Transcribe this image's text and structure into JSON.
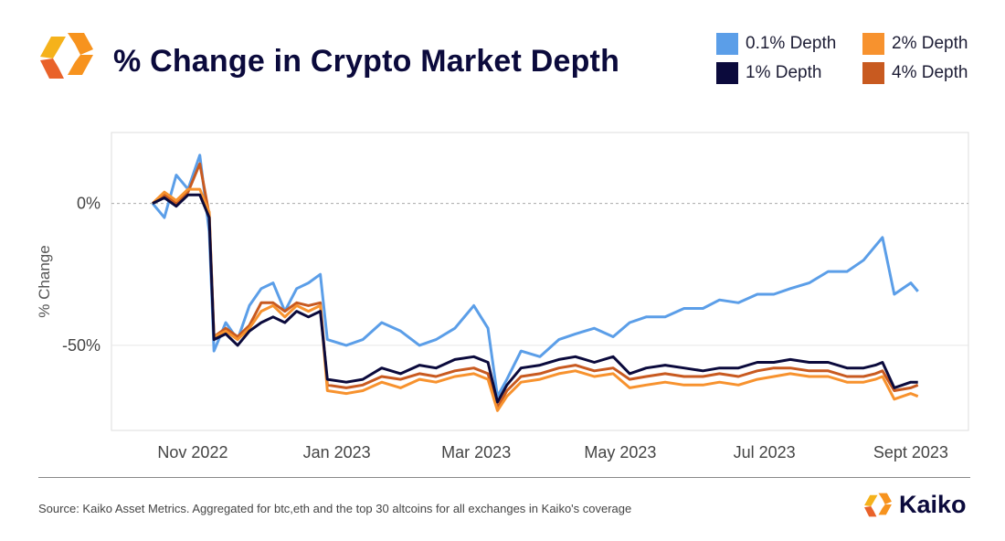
{
  "title": "% Change in Crypto Market Depth",
  "source": "Source: Kaiko Asset Metrics. Aggregated for btc,eth and the top 30 altcoins for all exchanges in Kaiko's coverage",
  "brand": "Kaiko",
  "colors": {
    "title": "#0b0a3c",
    "logo_orange": "#f7931e",
    "logo_gold": "#f5b21b",
    "logo_red": "#e9622a"
  },
  "chart_data": {
    "type": "line",
    "title": "% Change in Crypto Market Depth",
    "xlabel": "",
    "ylabel": "% Change",
    "ylim": [
      -80,
      25
    ],
    "yticks": [
      {
        "value": 0,
        "label": "0%"
      },
      {
        "value": -50,
        "label": "-50%"
      }
    ],
    "xlim": [
      "2022-10-15",
      "2023-09-08"
    ],
    "xticks": [
      {
        "date": "2022-11-01",
        "label": "Nov 2022"
      },
      {
        "date": "2023-01-01",
        "label": "Jan 2023"
      },
      {
        "date": "2023-03-01",
        "label": "Mar 2023"
      },
      {
        "date": "2023-05-01",
        "label": "May 2023"
      },
      {
        "date": "2023-07-01",
        "label": "Jul 2023"
      },
      {
        "date": "2023-09-01",
        "label": "Sept 2023"
      }
    ],
    "grid": true,
    "legend_position": "top-right",
    "x": [
      "2022-10-15",
      "2022-10-20",
      "2022-10-25",
      "2022-10-30",
      "2022-11-04",
      "2022-11-08",
      "2022-11-10",
      "2022-11-15",
      "2022-11-20",
      "2022-11-25",
      "2022-11-30",
      "2022-12-05",
      "2022-12-10",
      "2022-12-15",
      "2022-12-20",
      "2022-12-25",
      "2022-12-28",
      "2023-01-05",
      "2023-01-12",
      "2023-01-20",
      "2023-01-28",
      "2023-02-05",
      "2023-02-12",
      "2023-02-20",
      "2023-02-28",
      "2023-03-06",
      "2023-03-10",
      "2023-03-14",
      "2023-03-20",
      "2023-03-28",
      "2023-04-05",
      "2023-04-12",
      "2023-04-20",
      "2023-04-28",
      "2023-05-05",
      "2023-05-12",
      "2023-05-20",
      "2023-05-28",
      "2023-06-05",
      "2023-06-12",
      "2023-06-20",
      "2023-06-28",
      "2023-07-05",
      "2023-07-12",
      "2023-07-20",
      "2023-07-28",
      "2023-08-05",
      "2023-08-12",
      "2023-08-17",
      "2023-08-20",
      "2023-08-25",
      "2023-09-01",
      "2023-09-04"
    ],
    "series": [
      {
        "name": "0.1% Depth",
        "color": "#5b9ee8",
        "values": [
          0,
          -5,
          10,
          5,
          17,
          -10,
          -52,
          -42,
          -48,
          -36,
          -30,
          -28,
          -38,
          -30,
          -28,
          -25,
          -48,
          -50,
          -48,
          -42,
          -45,
          -50,
          -48,
          -44,
          -36,
          -44,
          -68,
          -62,
          -52,
          -54,
          -48,
          -46,
          -44,
          -47,
          -42,
          -40,
          -40,
          -37,
          -37,
          -34,
          -35,
          -32,
          -32,
          -30,
          -28,
          -24,
          -24,
          -20,
          -15,
          -12,
          -32,
          -28,
          -31
        ]
      },
      {
        "name": "1% Depth",
        "color": "#0b0a3c",
        "values": [
          0,
          2,
          -1,
          3,
          3,
          -5,
          -48,
          -46,
          -50,
          -45,
          -42,
          -40,
          -42,
          -38,
          -40,
          -38,
          -62,
          -63,
          -62,
          -58,
          -60,
          -57,
          -58,
          -55,
          -54,
          -56,
          -70,
          -64,
          -58,
          -57,
          -55,
          -54,
          -56,
          -54,
          -60,
          -58,
          -57,
          -58,
          -59,
          -58,
          -58,
          -56,
          -56,
          -55,
          -56,
          -56,
          -58,
          -58,
          -57,
          -56,
          -65,
          -63,
          -63
        ]
      },
      {
        "name": "2% Depth",
        "color": "#f7922e",
        "values": [
          0,
          4,
          1,
          5,
          5,
          -3,
          -47,
          -45,
          -48,
          -44,
          -38,
          -36,
          -40,
          -36,
          -38,
          -36,
          -66,
          -67,
          -66,
          -63,
          -65,
          -62,
          -63,
          -61,
          -60,
          -62,
          -73,
          -68,
          -63,
          -62,
          -60,
          -59,
          -61,
          -60,
          -65,
          -64,
          -63,
          -64,
          -64,
          -63,
          -64,
          -62,
          -61,
          -60,
          -61,
          -61,
          -63,
          -63,
          -62,
          -61,
          -69,
          -67,
          -68
        ]
      },
      {
        "name": "4% Depth",
        "color": "#c85a20",
        "values": [
          0,
          3,
          0,
          4,
          14,
          -4,
          -47,
          -44,
          -47,
          -43,
          -35,
          -35,
          -38,
          -35,
          -36,
          -35,
          -64,
          -65,
          -64,
          -61,
          -62,
          -60,
          -61,
          -59,
          -58,
          -60,
          -72,
          -66,
          -61,
          -60,
          -58,
          -57,
          -59,
          -58,
          -62,
          -61,
          -60,
          -61,
          -61,
          -60,
          -61,
          -59,
          -58,
          -58,
          -59,
          -59,
          -61,
          -61,
          -60,
          -59,
          -66,
          -65,
          -64
        ]
      }
    ]
  }
}
